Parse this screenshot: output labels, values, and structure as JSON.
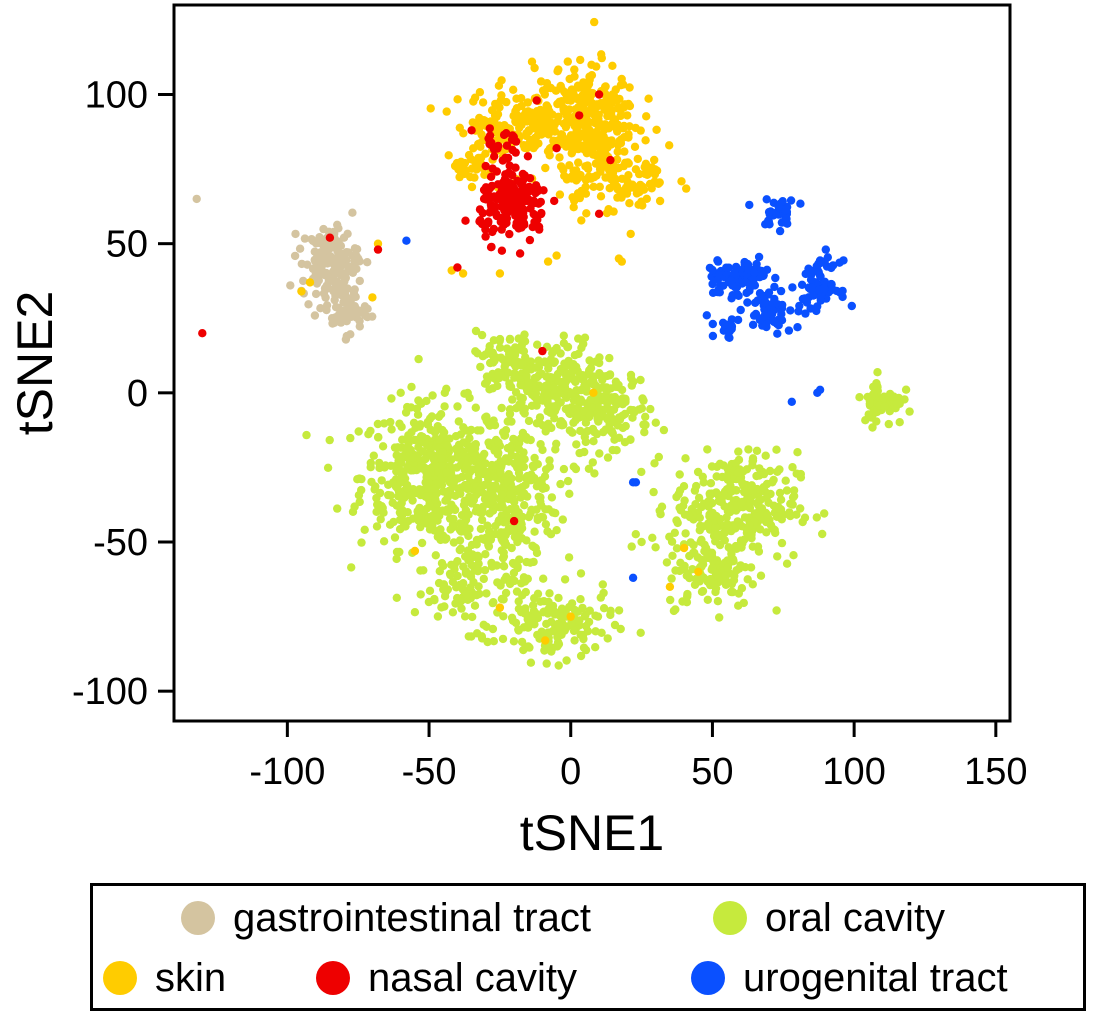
{
  "chart_data": {
    "type": "scatter",
    "xlabel": "tSNE1",
    "ylabel": "tSNE2",
    "xlim": [
      -140,
      155
    ],
    "ylim": [
      -110,
      130
    ],
    "xticks": [
      -100,
      -50,
      0,
      50,
      100,
      150
    ],
    "yticks": [
      -100,
      -50,
      0,
      50,
      100
    ],
    "xtick_labels": [
      "-100",
      "-50",
      "0",
      "50",
      "100",
      "150"
    ],
    "ytick_labels": [
      "-100",
      "-50",
      "0",
      "50",
      "100"
    ],
    "legend_position": "bottom",
    "series": [
      {
        "name": "gastrointestinal tract",
        "color": "#d4c4a0",
        "clusters": [
          {
            "cx": -85,
            "cy": 44,
            "sx": 5,
            "sy": 6,
            "n": 140
          },
          {
            "cx": -80,
            "cy": 28,
            "sx": 4,
            "sy": 4,
            "n": 60
          }
        ],
        "points": [
          [
            -132,
            65
          ],
          [
            -80,
            52
          ],
          [
            -75,
            45
          ]
        ]
      },
      {
        "name": "oral cavity",
        "color": "#c6ea3d",
        "clusters": [
          {
            "cx": -48,
            "cy": -28,
            "sx": 13,
            "sy": 12,
            "n": 480
          },
          {
            "cx": -22,
            "cy": -35,
            "sx": 9,
            "sy": 12,
            "n": 280
          },
          {
            "cx": -10,
            "cy": 2,
            "sx": 9,
            "sy": 8,
            "n": 220
          },
          {
            "cx": 12,
            "cy": -5,
            "sx": 8,
            "sy": 7,
            "n": 180
          },
          {
            "cx": -35,
            "cy": -65,
            "sx": 10,
            "sy": 7,
            "n": 110
          },
          {
            "cx": -5,
            "cy": -78,
            "sx": 10,
            "sy": 6,
            "n": 140
          },
          {
            "cx": 58,
            "cy": -38,
            "sx": 11,
            "sy": 9,
            "n": 300
          },
          {
            "cx": 50,
            "cy": -60,
            "sx": 8,
            "sy": 6,
            "n": 110
          },
          {
            "cx": 110,
            "cy": -3,
            "sx": 3.5,
            "sy": 4,
            "n": 60
          },
          {
            "cx": -25,
            "cy": 12,
            "sx": 6,
            "sy": 4,
            "n": 50
          }
        ],
        "points": [
          [
            -5,
            15
          ],
          [
            -60,
            0
          ],
          [
            30,
            -10
          ],
          [
            25,
            -50
          ],
          [
            -15,
            -85
          ]
        ]
      },
      {
        "name": "skin",
        "color": "#ffcc00",
        "clusters": [
          {
            "cx": 5,
            "cy": 92,
            "sx": 9,
            "sy": 9,
            "n": 300
          },
          {
            "cx": -20,
            "cy": 90,
            "sx": 10,
            "sy": 6,
            "n": 160
          },
          {
            "cx": 15,
            "cy": 72,
            "sx": 10,
            "sy": 6,
            "n": 110
          },
          {
            "cx": -35,
            "cy": 73,
            "sx": 4,
            "sy": 3,
            "n": 25
          }
        ],
        "points": [
          [
            -42,
            41
          ],
          [
            -38,
            40
          ],
          [
            -8,
            44
          ],
          [
            -5,
            46
          ],
          [
            17,
            45
          ],
          [
            18,
            44
          ],
          [
            -70,
            32
          ],
          [
            -68,
            50
          ],
          [
            -95,
            34
          ],
          [
            -92,
            37
          ],
          [
            28,
            70
          ],
          [
            -25,
            40
          ],
          [
            40,
            -52
          ],
          [
            -55,
            -53
          ],
          [
            -25,
            -72
          ],
          [
            35,
            -65
          ],
          [
            -9,
            -83
          ],
          [
            0,
            -75
          ],
          [
            45,
            -60
          ],
          [
            8,
            0
          ]
        ]
      },
      {
        "name": "nasal cavity",
        "color": "#ee0000",
        "clusters": [
          {
            "cx": -20,
            "cy": 63,
            "sx": 6,
            "sy": 6,
            "n": 170
          },
          {
            "cx": -25,
            "cy": 82,
            "sx": 5,
            "sy": 4,
            "n": 20
          }
        ],
        "points": [
          [
            -130,
            20
          ],
          [
            -10,
            14
          ],
          [
            -40,
            42
          ],
          [
            -12,
            98
          ],
          [
            3,
            93
          ],
          [
            -35,
            88
          ],
          [
            -30,
            76
          ],
          [
            10,
            100
          ],
          [
            -20,
            -43
          ],
          [
            14,
            78
          ],
          [
            -5,
            82
          ],
          [
            10,
            60
          ],
          [
            -85,
            52
          ],
          [
            -68,
            48
          ]
        ]
      },
      {
        "name": "urogenital tract",
        "color": "#0a50ff",
        "clusters": [
          {
            "cx": 56,
            "cy": 38,
            "sx": 4,
            "sy": 3,
            "n": 60
          },
          {
            "cx": 70,
            "cy": 29,
            "sx": 4,
            "sy": 4,
            "n": 60
          },
          {
            "cx": 88,
            "cy": 36,
            "sx": 3.5,
            "sy": 4,
            "n": 70
          },
          {
            "cx": 74,
            "cy": 60,
            "sx": 3,
            "sy": 2.5,
            "n": 30
          },
          {
            "cx": 55,
            "cy": 22,
            "sx": 2,
            "sy": 1.5,
            "n": 20
          },
          {
            "cx": 64,
            "cy": 40,
            "sx": 3,
            "sy": 2,
            "n": 25
          }
        ],
        "points": [
          [
            -58,
            51
          ],
          [
            78,
            -3
          ],
          [
            87,
            0
          ],
          [
            88,
            1
          ],
          [
            23,
            -30
          ],
          [
            22,
            -30
          ],
          [
            22,
            -62
          ],
          [
            52,
            44
          ],
          [
            48,
            26
          ],
          [
            90,
            48
          ],
          [
            80,
            22
          ],
          [
            63,
            63
          ]
        ]
      }
    ]
  }
}
